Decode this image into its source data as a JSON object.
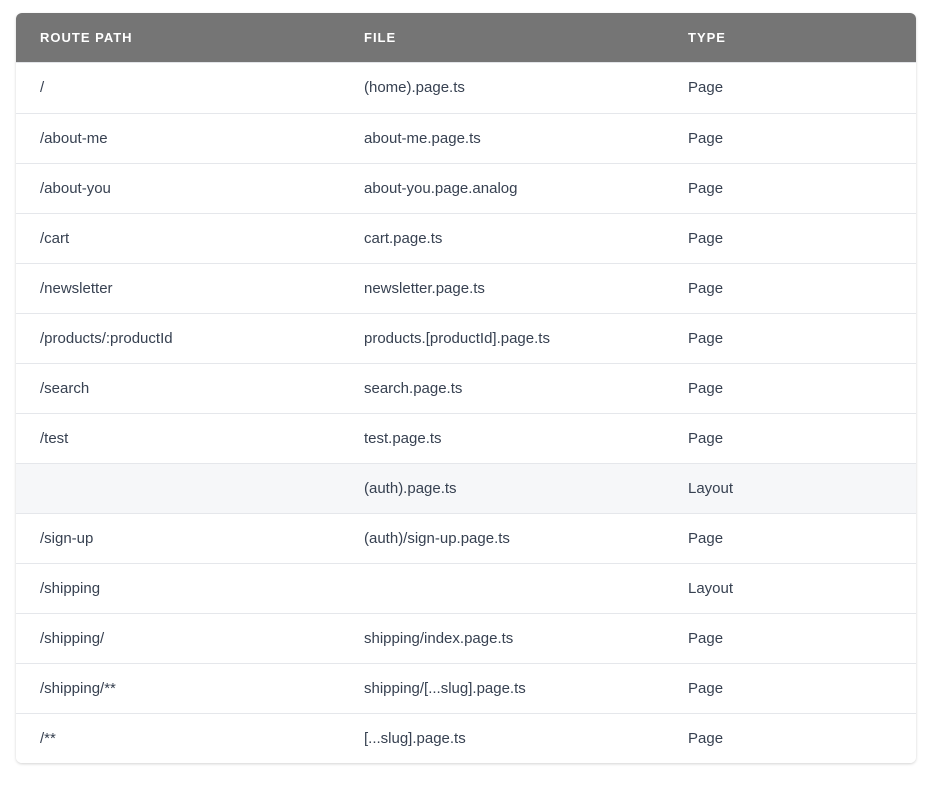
{
  "table": {
    "headers": [
      "ROUTE PATH",
      "FILE",
      "TYPE"
    ],
    "rows": [
      {
        "path": "/",
        "file": "(home).page.ts",
        "type": "Page"
      },
      {
        "path": "/about-me",
        "file": "about-me.page.ts",
        "type": "Page"
      },
      {
        "path": "/about-you",
        "file": "about-you.page.analog",
        "type": "Page"
      },
      {
        "path": "/cart",
        "file": "cart.page.ts",
        "type": "Page"
      },
      {
        "path": "/newsletter",
        "file": "newsletter.page.ts",
        "type": "Page"
      },
      {
        "path": "/products/:productId",
        "file": "products.[productId].page.ts",
        "type": "Page"
      },
      {
        "path": "/search",
        "file": "search.page.ts",
        "type": "Page"
      },
      {
        "path": "/test",
        "file": "test.page.ts",
        "type": "Page"
      },
      {
        "path": "",
        "file": "(auth).page.ts",
        "type": "Layout",
        "highlighted": true
      },
      {
        "path": "/sign-up",
        "file": "(auth)/sign-up.page.ts",
        "type": "Page"
      },
      {
        "path": "/shipping",
        "file": "",
        "type": "Layout"
      },
      {
        "path": "/shipping/",
        "file": "shipping/index.page.ts",
        "type": "Page"
      },
      {
        "path": "/shipping/**",
        "file": "shipping/[...slug].page.ts",
        "type": "Page"
      },
      {
        "path": "/**",
        "file": "[...slug].page.ts",
        "type": "Page"
      }
    ]
  },
  "colors": {
    "header_bg": "#757575",
    "highlight_row": "#f6f7f9",
    "text": "#374151"
  }
}
